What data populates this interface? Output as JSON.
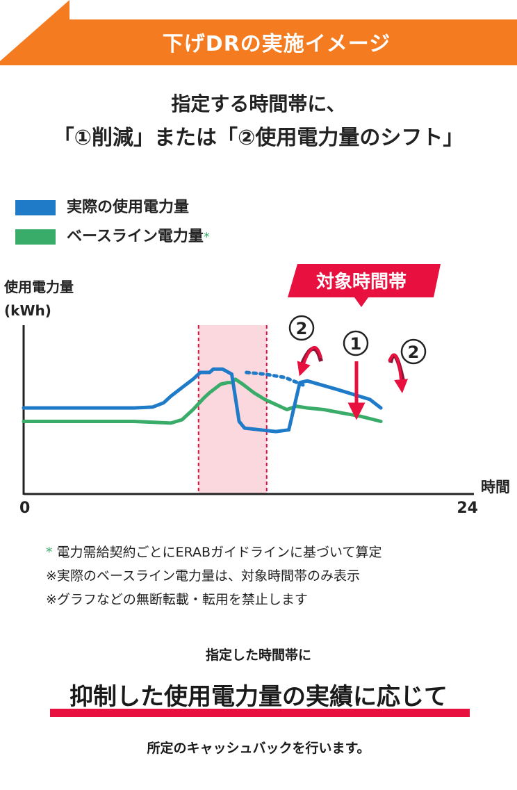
{
  "banner": {
    "title": "下げDRの実施イメージ",
    "color": "#f47b20"
  },
  "headline": {
    "line1": "指定する時間帯に、",
    "line2": "「①削減」または「②使用電力量のシフト」"
  },
  "legend": [
    {
      "label": "実際の使用電力量",
      "color": "#1f7ac8",
      "star": ""
    },
    {
      "label": "ベースライン電力量",
      "color": "#3aac69",
      "star": "*"
    }
  ],
  "chart_data": {
    "type": "line",
    "title": "",
    "ylabel": "使用電力量\n(kWh)",
    "ylabel_line1": "使用電力量",
    "ylabel_line2": "(kWh)",
    "xlabel": "時間",
    "x_min_label": "0",
    "x_max_label": "24",
    "xlim": [
      0,
      24
    ],
    "target_window": {
      "label": "対象時間帯",
      "start": 9.5,
      "end": 13.2,
      "color": "#e8103e"
    },
    "series": [
      {
        "name": "実際の使用電力量",
        "color": "#1f7ac8",
        "points": [
          [
            0,
            0.51
          ],
          [
            2,
            0.51
          ],
          [
            4,
            0.51
          ],
          [
            6,
            0.51
          ],
          [
            7,
            0.515
          ],
          [
            7.6,
            0.54
          ],
          [
            8,
            0.58
          ],
          [
            8.6,
            0.63
          ],
          [
            9.2,
            0.68
          ],
          [
            9.6,
            0.72
          ],
          [
            10.1,
            0.72
          ],
          [
            10.3,
            0.74
          ],
          [
            10.8,
            0.74
          ],
          [
            11.3,
            0.71
          ],
          [
            11.7,
            0.43
          ],
          [
            12.0,
            0.39
          ],
          [
            13.7,
            0.37
          ],
          [
            14.4,
            0.38
          ],
          [
            15.0,
            0.66
          ],
          [
            15.4,
            0.67
          ],
          [
            17.0,
            0.62
          ],
          [
            18.8,
            0.56
          ],
          [
            19.4,
            0.51
          ]
        ]
      },
      {
        "name": "ベースライン電力量",
        "color": "#3aac69",
        "points": [
          [
            0,
            0.43
          ],
          [
            6,
            0.43
          ],
          [
            8,
            0.42
          ],
          [
            8.6,
            0.44
          ],
          [
            9.2,
            0.5
          ],
          [
            9.8,
            0.57
          ],
          [
            10.1,
            0.6
          ],
          [
            10.7,
            0.65
          ],
          [
            11.1,
            0.66
          ],
          [
            11.3,
            0.66
          ],
          [
            11.5,
            0.68
          ],
          [
            11.9,
            0.65
          ],
          [
            12.5,
            0.6
          ],
          [
            13.1,
            0.56
          ],
          [
            13.7,
            0.53
          ],
          [
            14.3,
            0.5
          ],
          [
            14.8,
            0.52
          ],
          [
            15.4,
            0.51
          ],
          [
            16.3,
            0.5
          ],
          [
            17.3,
            0.48
          ],
          [
            18.3,
            0.46
          ],
          [
            19.4,
            0.43
          ]
        ]
      },
      {
        "name": "baseline-dotted",
        "color": "#1f7ac8",
        "points": [
          [
            12.1,
            0.72
          ],
          [
            13.1,
            0.71
          ],
          [
            14.2,
            0.69
          ],
          [
            15.3,
            0.64
          ]
        ]
      }
    ],
    "annotations": [
      {
        "text": "②",
        "meaning": "shift-left"
      },
      {
        "text": "①",
        "meaning": "reduction"
      },
      {
        "text": "②",
        "meaning": "shift-right"
      }
    ]
  },
  "notes": [
    {
      "star": "*",
      "text": " 電力需給契約ごとにERABガイドラインに基づいて算定"
    },
    {
      "star": "",
      "text": "※実際のベースライン電力量は、対象時間帯のみ表示"
    },
    {
      "star": "",
      "text": "※グラフなどの無断転載・転用を禁止します"
    }
  ],
  "footer": {
    "subline": "指定した時間帯に",
    "bigline": "抑制した使用電力量の実績に応じて",
    "closing": "所定のキャッシュバックを行います。"
  }
}
